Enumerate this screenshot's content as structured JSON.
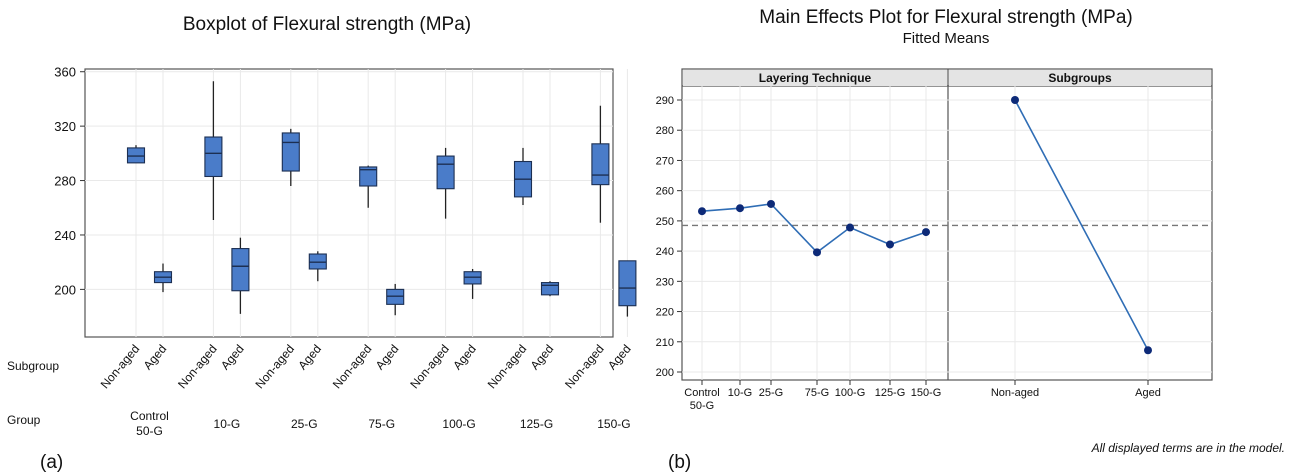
{
  "chart_data": [
    {
      "type": "boxplot",
      "panel_label": "(a)",
      "title": "Boxplot of Flexural strength (MPa)",
      "row_labels": {
        "subgroup": "Subgroup",
        "group": "Group"
      },
      "ylim": [
        165,
        362
      ],
      "yticks": [
        200,
        240,
        280,
        320,
        360
      ],
      "groups": [
        "Control 50-G",
        "10-G",
        "25-G",
        "75-G",
        "100-G",
        "125-G",
        "150-G"
      ],
      "subgroups": [
        "Non-aged",
        "Aged"
      ],
      "grid": true,
      "box_color": "#4a7cc9",
      "boxes": [
        {
          "group": "Control 50-G",
          "subgroup": "Non-aged",
          "min": 293,
          "q1": 293,
          "median": 298,
          "q3": 304,
          "max": 306
        },
        {
          "group": "Control 50-G",
          "subgroup": "Aged",
          "min": 198,
          "q1": 205,
          "median": 209,
          "q3": 213,
          "max": 219
        },
        {
          "group": "10-G",
          "subgroup": "Non-aged",
          "min": 251,
          "q1": 283,
          "median": 300,
          "q3": 312,
          "max": 353
        },
        {
          "group": "10-G",
          "subgroup": "Aged",
          "min": 182,
          "q1": 199,
          "median": 217,
          "q3": 230,
          "max": 238
        },
        {
          "group": "25-G",
          "subgroup": "Non-aged",
          "min": 276,
          "q1": 287,
          "median": 308,
          "q3": 315,
          "max": 318
        },
        {
          "group": "25-G",
          "subgroup": "Aged",
          "min": 206,
          "q1": 215,
          "median": 220,
          "q3": 226,
          "max": 228
        },
        {
          "group": "75-G",
          "subgroup": "Non-aged",
          "min": 260,
          "q1": 276,
          "median": 288,
          "q3": 290,
          "max": 291
        },
        {
          "group": "75-G",
          "subgroup": "Aged",
          "min": 181,
          "q1": 189,
          "median": 195,
          "q3": 200,
          "max": 204
        },
        {
          "group": "100-G",
          "subgroup": "Non-aged",
          "min": 252,
          "q1": 274,
          "median": 292,
          "q3": 298,
          "max": 304
        },
        {
          "group": "100-G",
          "subgroup": "Aged",
          "min": 193,
          "q1": 204,
          "median": 209,
          "q3": 213,
          "max": 215
        },
        {
          "group": "125-G",
          "subgroup": "Non-aged",
          "min": 262,
          "q1": 268,
          "median": 281,
          "q3": 294,
          "max": 304
        },
        {
          "group": "125-G",
          "subgroup": "Aged",
          "min": 195,
          "q1": 196,
          "median": 203,
          "q3": 205,
          "max": 206
        },
        {
          "group": "150-G",
          "subgroup": "Non-aged",
          "min": 249,
          "q1": 277,
          "median": 284,
          "q3": 307,
          "max": 335
        },
        {
          "group": "150-G",
          "subgroup": "Aged",
          "min": 180,
          "q1": 188,
          "median": 201,
          "q3": 221,
          "max": 221
        }
      ]
    },
    {
      "type": "line",
      "panel_label": "(b)",
      "title": "Main Effects Plot for Flexural strength (MPa)",
      "subtitle": "Fitted Means",
      "note": "All displayed terms are in the model.",
      "ylim": [
        198,
        295
      ],
      "yticks": [
        200,
        210,
        220,
        230,
        240,
        250,
        260,
        270,
        280,
        290
      ],
      "reference_line": 248.5,
      "grid": true,
      "line_color": "#2f6db5",
      "marker_color": "#0d2a78",
      "panels": [
        {
          "name": "Layering Technique",
          "categories": [
            "Control 50-G",
            "10-G",
            "25-G",
            "75-G",
            "100-G",
            "125-G",
            "150-G"
          ],
          "values": [
            253.2,
            254.2,
            255.6,
            239.6,
            247.8,
            242.2,
            246.3
          ]
        },
        {
          "name": "Subgroups",
          "categories": [
            "Non-aged",
            "Aged"
          ],
          "values": [
            290.0,
            207.2
          ]
        }
      ]
    }
  ]
}
